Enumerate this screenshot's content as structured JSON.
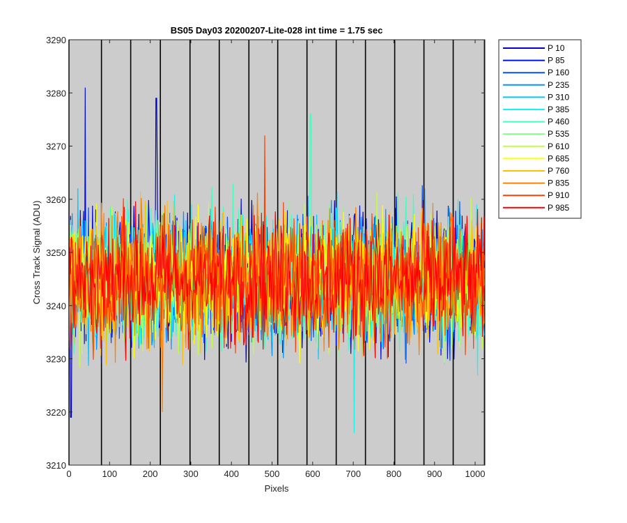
{
  "chart_data": {
    "type": "line",
    "title": "BS05 Day03 20200207-Lite-028 int time = 1.75 sec",
    "xlabel": "Pixels",
    "ylabel": "Cross Track Signal (ADU)",
    "xlim": [
      0,
      1024
    ],
    "ylim": [
      3210,
      3290
    ],
    "x_ticks": [
      0,
      100,
      200,
      300,
      400,
      500,
      600,
      700,
      800,
      900,
      1000
    ],
    "y_ticks": [
      3210,
      3220,
      3230,
      3240,
      3250,
      3260,
      3270,
      3280,
      3290
    ],
    "plot_background": "#cccccc",
    "vertical_markers": [
      0,
      80,
      152,
      225,
      298,
      370,
      443,
      514,
      586,
      658,
      730,
      802,
      874,
      946,
      1023
    ],
    "legend_placement": "outside-right",
    "signal_mean": 3245,
    "signal_range": [
      3216,
      3281
    ],
    "series": [
      {
        "name": "P 10",
        "color": "#0000c8"
      },
      {
        "name": "P 85",
        "color": "#0010e6"
      },
      {
        "name": "P 160",
        "color": "#0050ff"
      },
      {
        "name": "P 235",
        "color": "#0096ff"
      },
      {
        "name": "P 310",
        "color": "#00c8ff"
      },
      {
        "name": "P 385",
        "color": "#12f5f0"
      },
      {
        "name": "P 460",
        "color": "#40ffc0"
      },
      {
        "name": "P 535",
        "color": "#80ff80"
      },
      {
        "name": "P 610",
        "color": "#c0ff40"
      },
      {
        "name": "P 685",
        "color": "#ffff00"
      },
      {
        "name": "P 760",
        "color": "#ffc000"
      },
      {
        "name": "P 835",
        "color": "#ff8000"
      },
      {
        "name": "P 910",
        "color": "#ff4000"
      },
      {
        "name": "P 985",
        "color": "#ff0000"
      }
    ],
    "spikes": [
      {
        "series": "P 85",
        "x": 40,
        "y": 3281
      },
      {
        "series": "P 10",
        "x": 215,
        "y": 3279
      },
      {
        "series": "P 460",
        "x": 595,
        "y": 3276
      },
      {
        "series": "P 910",
        "x": 482,
        "y": 3272
      },
      {
        "series": "P 385",
        "x": 702,
        "y": 3216
      },
      {
        "series": "P 835",
        "x": 230,
        "y": 3220
      },
      {
        "series": "P 10",
        "x": 5,
        "y": 3219
      }
    ]
  }
}
